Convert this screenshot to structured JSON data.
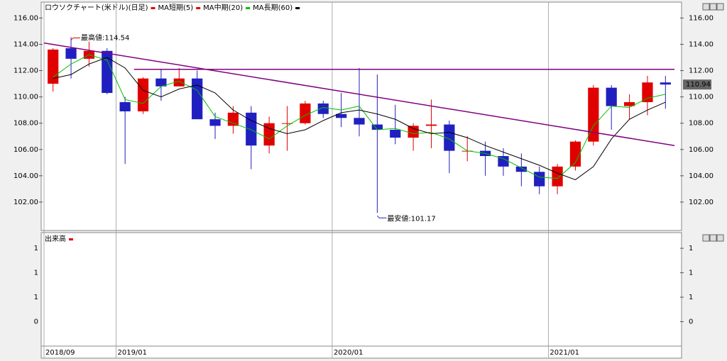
{
  "chart_data": {
    "type": "candlestick",
    "title": "ロウソクチャート(米ドル)(日足)",
    "title_color": "#e00000",
    "legend": [
      {
        "name": "MA短期(5)",
        "color": "#e00000"
      },
      {
        "name": "MA中期(20)",
        "color": "#00c000"
      },
      {
        "name": "MA長期(60)",
        "color": "#000000"
      }
    ],
    "categories": [
      "2018/09",
      null,
      null,
      null,
      "2019/01",
      null,
      null,
      null,
      null,
      null,
      null,
      null,
      null,
      null,
      null,
      null,
      "2020/01",
      null,
      null,
      null,
      null,
      null,
      null,
      null,
      null,
      null,
      null,
      null,
      "2021/01",
      null,
      null,
      null,
      null,
      null,
      null
    ],
    "open": [
      111.0,
      113.7,
      112.9,
      113.5,
      109.6,
      108.9,
      111.4,
      110.8,
      111.4,
      108.3,
      107.8,
      108.8,
      106.3,
      108.0,
      108.0,
      109.5,
      108.7,
      108.4,
      107.9,
      107.5,
      106.9,
      107.8,
      107.9,
      105.9,
      105.9,
      105.5,
      104.7,
      104.3,
      103.2,
      104.7,
      106.6,
      110.7,
      109.3,
      109.6,
      111.1
    ],
    "high": [
      113.7,
      114.54,
      114.2,
      113.7,
      110.0,
      111.5,
      112.1,
      112.2,
      112.0,
      108.8,
      109.3,
      109.3,
      108.5,
      109.3,
      109.7,
      109.7,
      110.3,
      112.2,
      111.7,
      109.4,
      108.0,
      109.8,
      108.2,
      107.0,
      106.6,
      106.1,
      105.7,
      104.7,
      104.9,
      106.7,
      110.9,
      110.9,
      110.2,
      111.6,
      111.6
    ],
    "low": [
      110.4,
      111.4,
      112.3,
      110.2,
      104.9,
      108.7,
      109.7,
      110.8,
      108.3,
      106.8,
      107.2,
      104.5,
      105.7,
      105.9,
      107.9,
      108.4,
      107.7,
      107.0,
      101.17,
      106.4,
      105.9,
      106.1,
      104.2,
      105.1,
      104.0,
      104.0,
      103.2,
      102.6,
      102.6,
      104.4,
      106.3,
      107.5,
      108.3,
      108.6,
      109.1
    ],
    "close": [
      113.6,
      112.9,
      113.5,
      110.3,
      108.9,
      111.4,
      110.8,
      111.4,
      108.3,
      107.8,
      108.8,
      106.3,
      108.0,
      108.0,
      109.5,
      108.7,
      108.4,
      107.9,
      107.5,
      106.9,
      107.8,
      107.9,
      105.9,
      105.9,
      105.5,
      104.7,
      104.3,
      103.2,
      104.7,
      106.6,
      110.7,
      109.3,
      109.6,
      111.1,
      110.94
    ],
    "up_color": "#e00000",
    "down_color": "#2020c0",
    "series": [
      {
        "name": "MA中期(20)",
        "color": "#00c000",
        "values": [
          111.5,
          112.5,
          113.2,
          112.8,
          109.8,
          109.5,
          110.8,
          111.2,
          110.5,
          108.5,
          108.0,
          107.5,
          106.8,
          107.8,
          108.6,
          109.2,
          109.0,
          109.3,
          107.5,
          107.6,
          107.2,
          107.3,
          106.8,
          105.9,
          105.7,
          105.3,
          104.6,
          103.9,
          103.8,
          105.0,
          107.8,
          109.3,
          109.2,
          109.9,
          110.2
        ]
      },
      {
        "name": "MA長期(60)",
        "color": "#000000",
        "values": [
          111.4,
          111.7,
          112.5,
          113.0,
          112.2,
          110.5,
          110.0,
          110.6,
          110.9,
          110.3,
          109.0,
          108.2,
          107.6,
          107.2,
          107.5,
          108.2,
          108.8,
          109.0,
          108.7,
          108.3,
          107.6,
          107.2,
          107.3,
          106.9,
          106.3,
          105.8,
          105.3,
          104.8,
          104.2,
          103.7,
          104.7,
          106.8,
          108.3,
          109.0,
          109.6
        ]
      }
    ],
    "trendlines": [
      {
        "color": "#800080",
        "x": [
          0,
          35
        ],
        "y": [
          114.1,
          106.3
        ]
      },
      {
        "color": "#800080",
        "x": [
          5,
          35
        ],
        "y": [
          112.1,
          112.1
        ]
      }
    ],
    "annotations": {
      "high": "最高値:114.54",
      "high_color": "#e00000",
      "low": "最安値:101.17",
      "low_color": "#2020c0"
    },
    "ylim": [
      100.0,
      117.1
    ],
    "yticks": [
      {
        "value": 102,
        "label": "102.00"
      },
      {
        "value": 104,
        "label": "104.00"
      },
      {
        "value": 106,
        "label": "106.00"
      },
      {
        "value": 108,
        "label": "108.00"
      },
      {
        "value": 110,
        "label": "110.00"
      },
      {
        "value": 112,
        "label": "112.00"
      },
      {
        "value": 114,
        "label": "114.00"
      },
      {
        "value": 116,
        "label": "116.00"
      }
    ],
    "volume": {
      "title": "出来高",
      "color": "#e00000",
      "ylim": [
        -0.5,
        1.82
      ],
      "yticks": [
        0,
        {
          "value": 0.5,
          "label": "1"
        },
        1,
        {
          "value": 1.5,
          "label": "1"
        }
      ]
    }
  }
}
